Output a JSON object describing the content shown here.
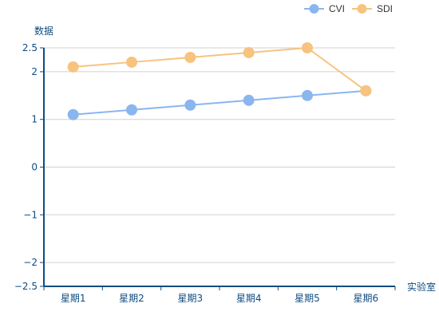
{
  "chart_data": {
    "type": "line",
    "xlabel": "实验室",
    "ylabel": "数据",
    "categories": [
      "星期1",
      "星期2",
      "星期3",
      "星期4",
      "星期5",
      "星期6"
    ],
    "ylim": [
      -2.5,
      2.5
    ],
    "yticks": [
      2.5,
      2,
      1,
      0,
      -1,
      -2,
      -2.5
    ],
    "ytick_labels": [
      "2.5",
      "2",
      "1",
      "0",
      "−1",
      "−2",
      "−2.5"
    ],
    "grid": true,
    "legend_position": "top-right",
    "series": [
      {
        "name": "CVI",
        "color": "#8ab6ef",
        "values": [
          1.1,
          1.2,
          1.3,
          1.4,
          1.5,
          1.6
        ]
      },
      {
        "name": "SDI",
        "color": "#f7c37f",
        "values": [
          2.1,
          2.2,
          2.3,
          2.4,
          2.5,
          1.6
        ]
      }
    ]
  }
}
